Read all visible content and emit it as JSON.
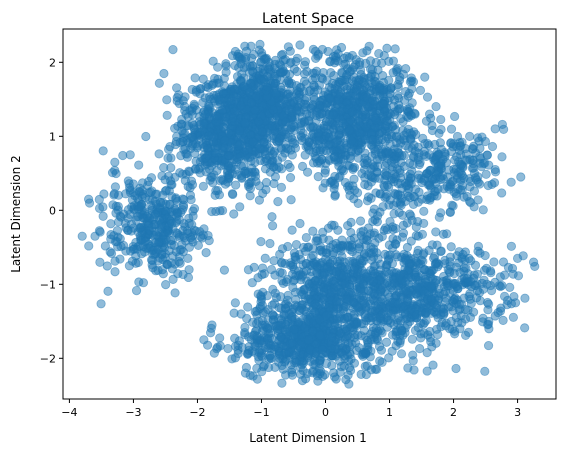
{
  "chart_data": {
    "type": "scatter",
    "title": "Latent Space",
    "xlabel": "Latent Dimension 1",
    "ylabel": "Latent Dimension 2",
    "xlim": [
      -4.1,
      3.6
    ],
    "ylim": [
      -2.55,
      2.45
    ],
    "xticks": [
      -4,
      -3,
      -2,
      -1,
      0,
      1,
      2,
      3
    ],
    "yticks": [
      -2,
      -1,
      0,
      1,
      2
    ],
    "marker_color": "#1f77b4",
    "marker_opacity": 0.5,
    "grid": false,
    "clusters": [
      {
        "center": [
          -1.5,
          1.0
        ],
        "spread": [
          0.45,
          0.38
        ],
        "count": 700
      },
      {
        "center": [
          -0.9,
          1.5
        ],
        "spread": [
          0.35,
          0.35
        ],
        "count": 500
      },
      {
        "center": [
          0.5,
          1.25
        ],
        "spread": [
          0.45,
          0.42
        ],
        "count": 800
      },
      {
        "center": [
          -2.7,
          -0.2
        ],
        "spread": [
          0.4,
          0.35
        ],
        "count": 380
      },
      {
        "center": [
          2.0,
          0.55
        ],
        "spread": [
          0.35,
          0.25
        ],
        "count": 180
      },
      {
        "center": [
          1.2,
          0.35
        ],
        "spread": [
          0.3,
          0.3
        ],
        "count": 120
      },
      {
        "center": [
          -0.3,
          -1.75
        ],
        "spread": [
          0.55,
          0.25
        ],
        "count": 650
      },
      {
        "center": [
          0.0,
          -0.95
        ],
        "spread": [
          0.45,
          0.35
        ],
        "count": 450
      },
      {
        "center": [
          1.3,
          -1.1
        ],
        "spread": [
          0.5,
          0.4
        ],
        "count": 600
      },
      {
        "center": [
          2.3,
          -1.05
        ],
        "spread": [
          0.35,
          0.25
        ],
        "count": 90
      }
    ],
    "outliers": [
      [
        -3.7,
        0.15
      ],
      [
        -3.8,
        -0.35
      ],
      [
        -3.6,
        -0.35
      ],
      [
        3.05,
        0.45
      ],
      [
        3.25,
        -0.7
      ],
      [
        3.0,
        -0.65
      ],
      [
        2.9,
        0.38
      ],
      [
        2.65,
        1.1
      ],
      [
        0.8,
        -2.15
      ],
      [
        -0.55,
        2.15
      ],
      [
        0.25,
        2.2
      ],
      [
        -2.15,
        -0.65
      ],
      [
        2.1,
        -1.6
      ],
      [
        2.55,
        -1.5
      ],
      [
        -1.9,
        -1.75
      ],
      [
        -1.25,
        -2.2
      ],
      [
        2.25,
        0.12
      ],
      [
        2.6,
        0.35
      ],
      [
        -3.05,
        0.75
      ],
      [
        1.45,
        -0.35
      ]
    ]
  }
}
